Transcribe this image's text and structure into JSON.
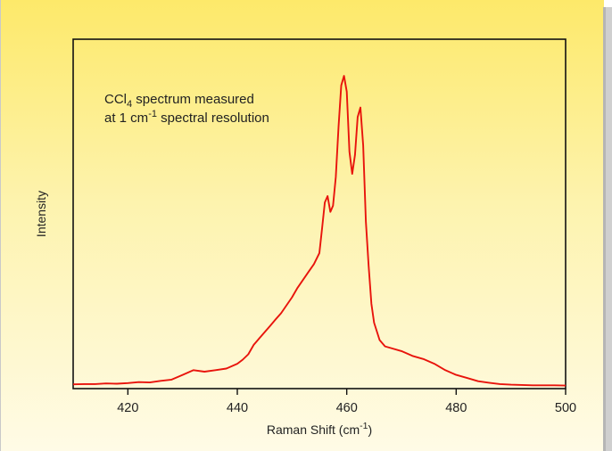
{
  "chart_data": {
    "type": "line",
    "title": "",
    "xlabel_prefix": "Raman Shift (cm",
    "xlabel_sup": "-1",
    "xlabel_suffix": ")",
    "ylabel": "Intensity",
    "xlim": [
      410,
      500
    ],
    "ylim": [
      0,
      1
    ],
    "xticks": [
      420,
      440,
      460,
      480,
      500
    ],
    "x_tick_labels": [
      "420",
      "440",
      "460",
      "480",
      "500"
    ],
    "grid": false,
    "line_color": "#e8140c",
    "annotation": {
      "line1_pre": "CCl",
      "line1_sub": "4",
      "line1_post": " spectrum measured",
      "line2_pre": "at 1 cm",
      "line2_sup": "-1",
      "line2_post": " spectral resolution"
    },
    "series": [
      {
        "x": [
          410,
          412,
          414,
          416,
          418,
          420,
          422,
          424,
          426,
          428,
          430,
          432,
          434,
          436,
          438,
          440,
          441,
          442,
          443,
          444,
          445,
          446,
          447,
          448,
          449,
          450,
          451,
          452,
          453,
          454,
          455,
          455.5,
          456,
          456.5,
          457,
          457.5,
          458,
          458.5,
          459,
          459.5,
          460,
          460.5,
          461,
          461.5,
          462,
          462.5,
          463,
          463.5,
          464,
          464.5,
          465,
          466,
          467,
          468,
          470,
          472,
          474,
          476,
          478,
          480,
          482,
          484,
          486,
          488,
          490,
          492,
          494,
          496,
          498,
          500
        ],
        "y": [
          0.005,
          0.006,
          0.006,
          0.008,
          0.007,
          0.009,
          0.012,
          0.011,
          0.016,
          0.02,
          0.035,
          0.05,
          0.045,
          0.05,
          0.055,
          0.07,
          0.083,
          0.1,
          0.13,
          0.15,
          0.17,
          0.19,
          0.21,
          0.23,
          0.255,
          0.28,
          0.31,
          0.335,
          0.36,
          0.385,
          0.42,
          0.5,
          0.58,
          0.6,
          0.55,
          0.57,
          0.66,
          0.82,
          0.95,
          0.98,
          0.93,
          0.74,
          0.67,
          0.73,
          0.85,
          0.88,
          0.76,
          0.52,
          0.38,
          0.26,
          0.2,
          0.145,
          0.125,
          0.12,
          0.11,
          0.095,
          0.085,
          0.07,
          0.05,
          0.035,
          0.025,
          0.015,
          0.01,
          0.006,
          0.004,
          0.003,
          0.002,
          0.002,
          0.002,
          0.001
        ]
      }
    ]
  }
}
